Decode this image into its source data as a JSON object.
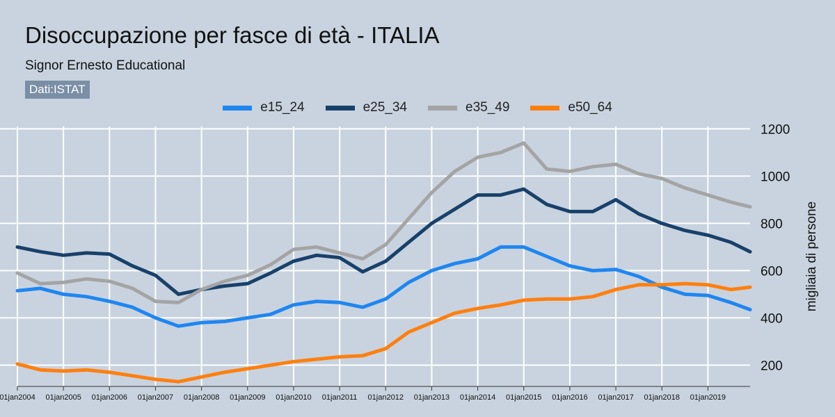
{
  "header": {
    "title": "Disoccupazione per fasce di età - ITALIA",
    "subtitle": "Signor Ernesto Educational",
    "source": "Dati:ISTAT"
  },
  "chart_data": {
    "type": "line",
    "ylabel": "migliaia di persone",
    "ylim": [
      110,
      1210
    ],
    "y_ticks": [
      200,
      400,
      600,
      800,
      1000,
      1200
    ],
    "x_tick_labels": [
      "01jan2004",
      "01jan2005",
      "01jan2006",
      "01jan2007",
      "01jan2008",
      "01jan2009",
      "01jan2010",
      "01jan2011",
      "01jan2012",
      "01jan2013",
      "01jan2014",
      "01jan2015",
      "01jan2016",
      "01jan2017",
      "01jan2018",
      "01jan2019"
    ],
    "x_range": [
      "2004-01",
      "2019-12"
    ],
    "grid": true,
    "legend_position": "top",
    "x": [
      "2004-01",
      "2004-07",
      "2005-01",
      "2005-07",
      "2006-01",
      "2006-07",
      "2007-01",
      "2007-07",
      "2008-01",
      "2008-07",
      "2009-01",
      "2009-07",
      "2010-01",
      "2010-07",
      "2011-01",
      "2011-07",
      "2012-01",
      "2012-07",
      "2013-01",
      "2013-07",
      "2014-01",
      "2014-07",
      "2015-01",
      "2015-07",
      "2016-01",
      "2016-07",
      "2017-01",
      "2017-07",
      "2018-01",
      "2018-07",
      "2019-01",
      "2019-07",
      "2019-12"
    ],
    "series": [
      {
        "name": "e15_24",
        "color": "#1f86f0",
        "values": [
          515,
          525,
          500,
          490,
          470,
          445,
          400,
          365,
          380,
          385,
          400,
          415,
          455,
          470,
          465,
          445,
          480,
          550,
          600,
          630,
          650,
          700,
          700,
          660,
          620,
          600,
          605,
          575,
          530,
          500,
          495,
          465,
          435
        ]
      },
      {
        "name": "e25_34",
        "color": "#18416a",
        "values": [
          700,
          680,
          665,
          675,
          670,
          620,
          580,
          500,
          520,
          535,
          545,
          590,
          640,
          665,
          655,
          595,
          640,
          720,
          800,
          860,
          920,
          920,
          945,
          880,
          850,
          850,
          900,
          840,
          800,
          770,
          750,
          720,
          680
        ]
      },
      {
        "name": "e35_49",
        "color": "#a4a4a4",
        "values": [
          590,
          545,
          550,
          565,
          555,
          525,
          470,
          465,
          520,
          555,
          580,
          625,
          690,
          700,
          675,
          650,
          710,
          820,
          930,
          1020,
          1080,
          1100,
          1140,
          1030,
          1020,
          1040,
          1050,
          1010,
          990,
          950,
          920,
          890,
          870
        ]
      },
      {
        "name": "e50_64",
        "color": "#ff7f0e",
        "values": [
          205,
          180,
          175,
          180,
          170,
          155,
          140,
          130,
          150,
          170,
          185,
          200,
          215,
          225,
          235,
          240,
          270,
          340,
          380,
          420,
          440,
          455,
          475,
          480,
          480,
          490,
          520,
          540,
          540,
          545,
          540,
          520,
          530
        ]
      }
    ]
  }
}
